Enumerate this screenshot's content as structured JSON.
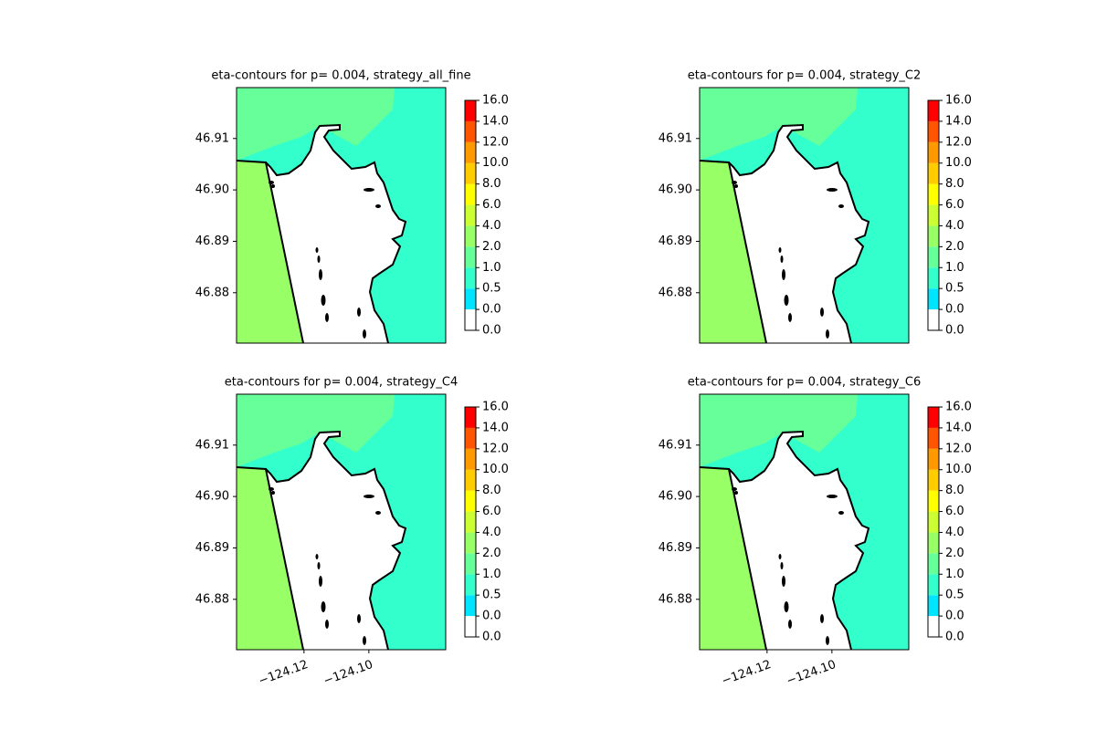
{
  "chart_data": [
    {
      "type": "contour",
      "title": "eta-contours for p= 0.004, strategy_all_fine",
      "xlim": [
        -124.1408,
        -124.0763
      ],
      "ylim": [
        46.8702,
        46.9199
      ],
      "yticks": [
        46.88,
        46.89,
        {
          "value": 46.9,
          "label": "46.90"
        },
        46.91
      ],
      "colorbar": {
        "levels": [
          {
            "value": 0,
            "label": "0.0"
          },
          {
            "value": 0,
            "label": "0.0"
          },
          0.5,
          {
            "value": 1,
            "label": "1.0"
          },
          {
            "value": 2,
            "label": "2.0"
          },
          {
            "value": 4,
            "label": "4.0"
          },
          {
            "value": 6,
            "label": "6.0"
          },
          {
            "value": 8,
            "label": "8.0"
          },
          {
            "value": 10,
            "label": "10.0"
          },
          {
            "value": 12,
            "label": "12.0"
          },
          {
            "value": 14,
            "label": "14.0"
          },
          {
            "value": 16,
            "label": "16.0"
          }
        ],
        "colors": [
          "#ffffff",
          "#00e5ff",
          "#33ffcc",
          "#66ff99",
          "#99ff66",
          "#ccff33",
          "#ffff00",
          "#ffcc00",
          "#ff9900",
          "#ff5500",
          "#ff0000"
        ]
      }
    },
    {
      "type": "contour",
      "title": "eta-contours for p= 0.004, strategy_C2",
      "xlim": [
        -124.1408,
        -124.0763
      ],
      "ylim": [
        46.8702,
        46.9199
      ],
      "yticks": [
        46.88,
        46.89,
        {
          "value": 46.9,
          "label": "46.90"
        },
        46.91
      ],
      "colorbar": {
        "levels": [
          {
            "value": 0,
            "label": "0.0"
          },
          {
            "value": 0,
            "label": "0.0"
          },
          0.5,
          {
            "value": 1,
            "label": "1.0"
          },
          {
            "value": 2,
            "label": "2.0"
          },
          {
            "value": 4,
            "label": "4.0"
          },
          {
            "value": 6,
            "label": "6.0"
          },
          {
            "value": 8,
            "label": "8.0"
          },
          {
            "value": 10,
            "label": "10.0"
          },
          {
            "value": 12,
            "label": "12.0"
          },
          {
            "value": 14,
            "label": "14.0"
          },
          {
            "value": 16,
            "label": "16.0"
          }
        ],
        "colors": [
          "#ffffff",
          "#00e5ff",
          "#33ffcc",
          "#66ff99",
          "#99ff66",
          "#ccff33",
          "#ffff00",
          "#ffcc00",
          "#ff9900",
          "#ff5500",
          "#ff0000"
        ]
      }
    },
    {
      "type": "contour",
      "title": "eta-contours for p= 0.004, strategy_C4",
      "xlim": [
        -124.1408,
        -124.0763
      ],
      "ylim": [
        46.8702,
        46.9199
      ],
      "xticks": [
        {
          "value": -124.12,
          "label": "−124.12"
        },
        {
          "value": -124.1,
          "label": "−124.10"
        }
      ],
      "yticks": [
        46.88,
        46.89,
        {
          "value": 46.9,
          "label": "46.90"
        },
        46.91
      ],
      "colorbar": {
        "levels": [
          {
            "value": 0,
            "label": "0.0"
          },
          {
            "value": 0,
            "label": "0.0"
          },
          0.5,
          {
            "value": 1,
            "label": "1.0"
          },
          {
            "value": 2,
            "label": "2.0"
          },
          {
            "value": 4,
            "label": "4.0"
          },
          {
            "value": 6,
            "label": "6.0"
          },
          {
            "value": 8,
            "label": "8.0"
          },
          {
            "value": 10,
            "label": "10.0"
          },
          {
            "value": 12,
            "label": "12.0"
          },
          {
            "value": 14,
            "label": "14.0"
          },
          {
            "value": 16,
            "label": "16.0"
          }
        ],
        "colors": [
          "#ffffff",
          "#00e5ff",
          "#33ffcc",
          "#66ff99",
          "#99ff66",
          "#ccff33",
          "#ffff00",
          "#ffcc00",
          "#ff9900",
          "#ff5500",
          "#ff0000"
        ]
      }
    },
    {
      "type": "contour",
      "title": "eta-contours for p= 0.004, strategy_C6",
      "xlim": [
        -124.1408,
        -124.0763
      ],
      "ylim": [
        46.8702,
        46.9199
      ],
      "xticks": [
        {
          "value": -124.12,
          "label": "−124.12"
        },
        {
          "value": -124.1,
          "label": "−124.10"
        }
      ],
      "yticks": [
        46.88,
        46.89,
        {
          "value": 46.9,
          "label": "46.90"
        },
        46.91
      ],
      "colorbar": {
        "levels": [
          {
            "value": 0,
            "label": "0.0"
          },
          {
            "value": 0,
            "label": "0.0"
          },
          0.5,
          {
            "value": 1,
            "label": "1.0"
          },
          {
            "value": 2,
            "label": "2.0"
          },
          {
            "value": 4,
            "label": "4.0"
          },
          {
            "value": 6,
            "label": "6.0"
          },
          {
            "value": 8,
            "label": "8.0"
          },
          {
            "value": 10,
            "label": "10.0"
          },
          {
            "value": 12,
            "label": "12.0"
          },
          {
            "value": 14,
            "label": "14.0"
          },
          {
            "value": 16,
            "label": "16.0"
          }
        ],
        "colors": [
          "#ffffff",
          "#00e5ff",
          "#33ffcc",
          "#66ff99",
          "#99ff66",
          "#ccff33",
          "#ffff00",
          "#ffcc00",
          "#ff9900",
          "#ff5500",
          "#ff0000"
        ]
      }
    }
  ]
}
